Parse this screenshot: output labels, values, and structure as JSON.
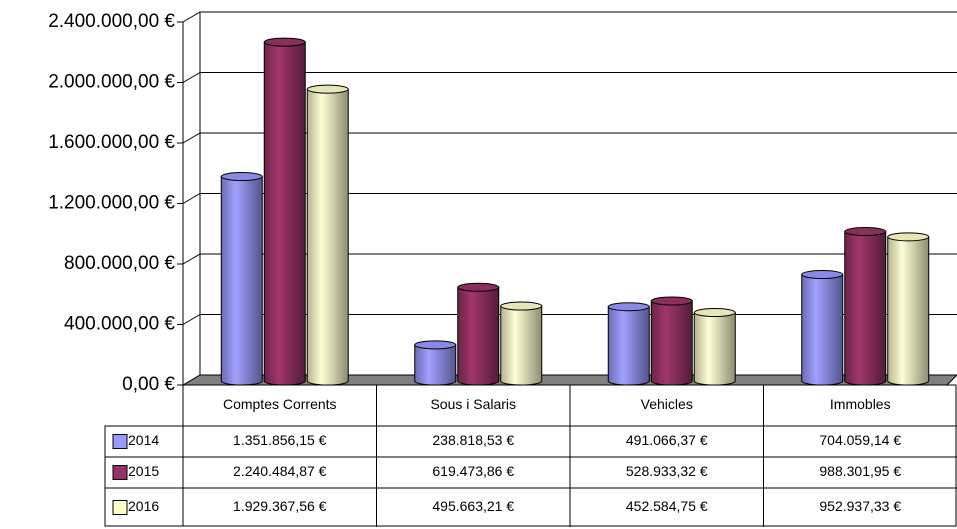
{
  "chart_data": {
    "type": "bar",
    "categories": [
      "Comptes Corrents",
      "Sous i Salaris",
      "Vehicles",
      "Immobles"
    ],
    "series": [
      {
        "name": "2014",
        "color": "#9999ff",
        "values": [
          1351856.15,
          238818.53,
          491066.37,
          704059.14
        ],
        "value_labels": [
          "1.351.856,15 €",
          "238.818,53 €",
          "491.066,37 €",
          "704.059,14 €"
        ]
      },
      {
        "name": "2015",
        "color": "#993366",
        "values": [
          2240484.87,
          619473.86,
          528933.32,
          988301.95
        ],
        "value_labels": [
          "2.240.484,87 €",
          "619.473,86 €",
          "528.933,32 €",
          "988.301,95 €"
        ]
      },
      {
        "name": "2016",
        "color": "#ffffcc",
        "values": [
          1929367.56,
          495663.21,
          452584.75,
          952937.33
        ],
        "value_labels": [
          "1.929.367,56 €",
          "495.663,21 €",
          "452.584,75 €",
          "952.937,33 €"
        ]
      }
    ],
    "ylim": [
      0,
      2400000
    ],
    "yticks": [
      {
        "value": 0,
        "label": "0,00 €"
      },
      {
        "value": 400000,
        "label": "400.000,00 €"
      },
      {
        "value": 800000,
        "label": "800.000,00 €"
      },
      {
        "value": 1200000,
        "label": "1.200.000,00 €"
      },
      {
        "value": 1600000,
        "label": "1.600.000,00 €"
      },
      {
        "value": 2000000,
        "label": "2.000.000,00 €"
      },
      {
        "value": 2400000,
        "label": "2.400.000,00 €"
      }
    ],
    "grid": true
  }
}
